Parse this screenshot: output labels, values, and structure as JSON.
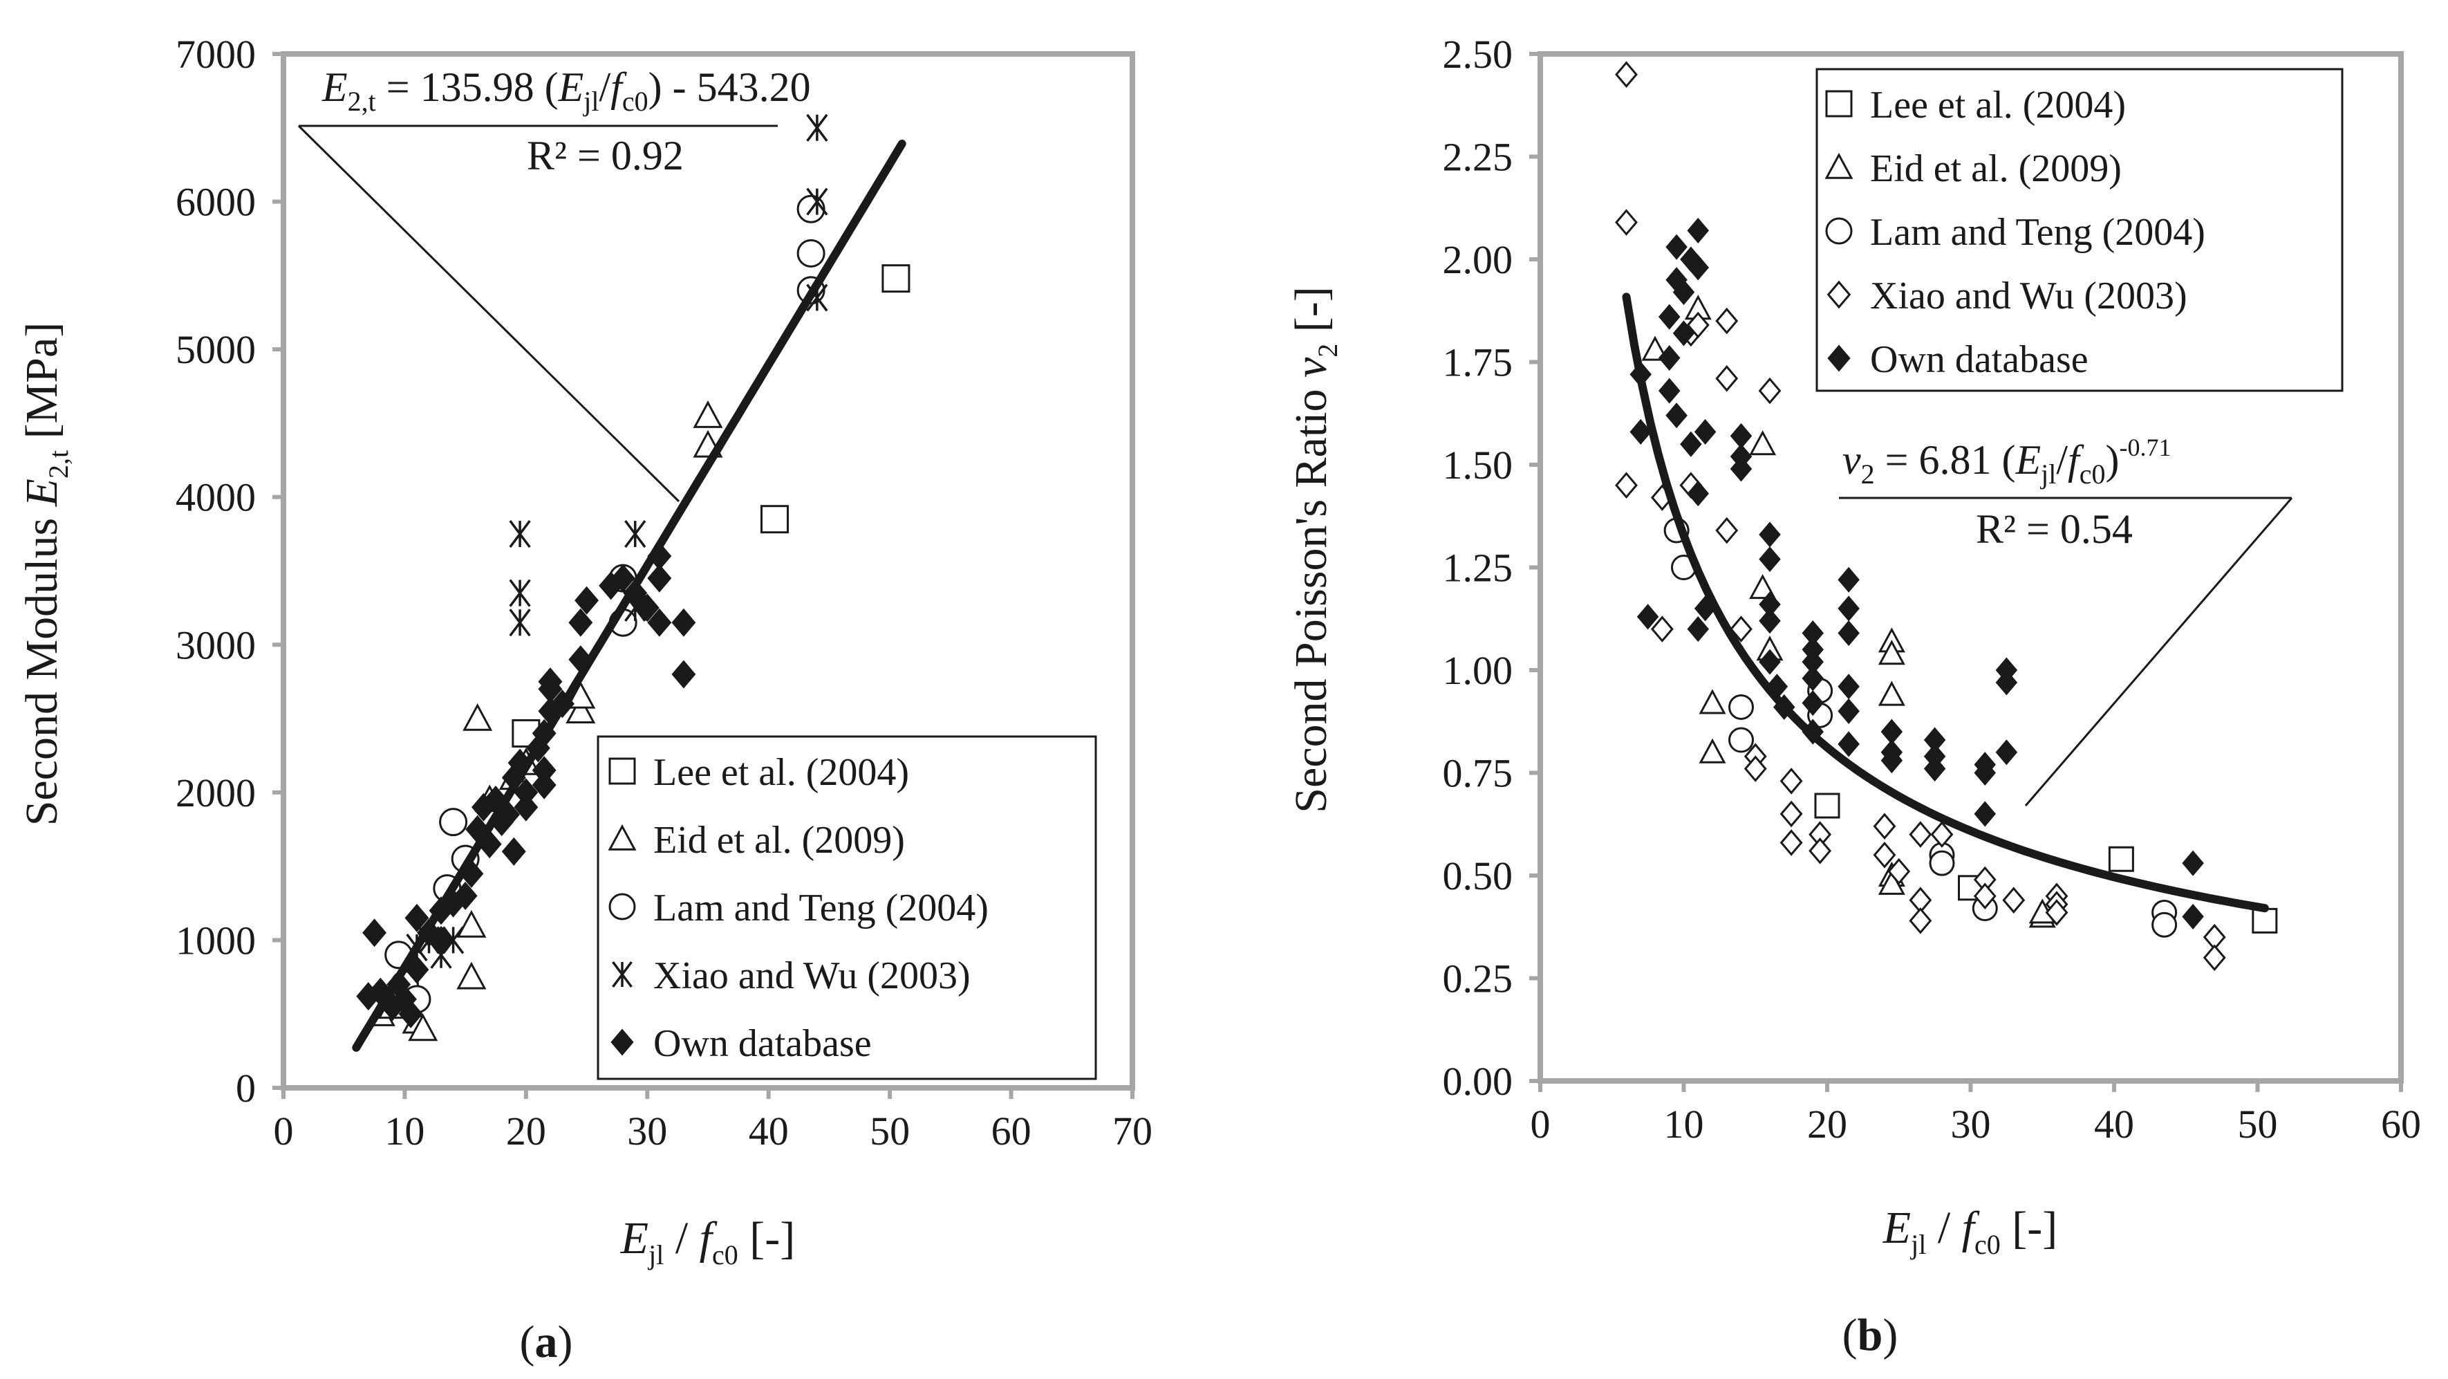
{
  "chart_data": [
    {
      "panel": "a",
      "type": "scatter",
      "caption": "(a)",
      "xlim": [
        0,
        70
      ],
      "ylim": [
        0,
        7000
      ],
      "x_ticks": [
        0,
        10,
        20,
        30,
        40,
        50,
        60,
        70
      ],
      "y_ticks": [
        0,
        1000,
        2000,
        3000,
        4000,
        5000,
        6000,
        7000
      ],
      "xlabel": "E_jl / f_c0 [-]",
      "ylabel": "Second Modulus E_2,t [MPa]",
      "equation": "E_2,t = 135.98 (E_jl/f_c0) - 543.20",
      "r2": "R² = 0.92",
      "fit": {
        "slope": 135.98,
        "intercept": -543.2,
        "x_range": [
          6,
          51
        ]
      },
      "series": [
        {
          "name": "Lee et al. (2004)",
          "marker": "square",
          "points": [
            [
              20,
              2400
            ],
            [
              40.5,
              3850
            ],
            [
              50.5,
              5480
            ]
          ]
        },
        {
          "name": "Eid et al. (2009)",
          "marker": "triangle",
          "points": [
            [
              8,
              500
            ],
            [
              9,
              550
            ],
            [
              11,
              450
            ],
            [
              11.5,
              400
            ],
            [
              15.5,
              750
            ],
            [
              15.5,
              1100
            ],
            [
              16,
              2500
            ],
            [
              17,
              1950
            ],
            [
              19,
              2100
            ],
            [
              20,
              2200
            ],
            [
              24.5,
              2550
            ],
            [
              24.5,
              2650
            ],
            [
              35,
              4350
            ],
            [
              35,
              4550
            ]
          ]
        },
        {
          "name": "Lam and Teng (2004)",
          "marker": "circle",
          "points": [
            [
              9.5,
              900
            ],
            [
              10,
              700
            ],
            [
              11,
              600
            ],
            [
              13.5,
              1350
            ],
            [
              14,
              1800
            ],
            [
              15,
              1550
            ],
            [
              28,
              3150
            ],
            [
              28,
              3450
            ],
            [
              43.5,
              5400
            ],
            [
              43.5,
              5950
            ],
            [
              43.5,
              5650
            ]
          ]
        },
        {
          "name": "Xiao and Wu (2003)",
          "marker": "asterisk",
          "points": [
            [
              11,
              950
            ],
            [
              12,
              1000
            ],
            [
              13,
              900
            ],
            [
              14,
              1000
            ],
            [
              19.5,
              3150
            ],
            [
              19.5,
              3350
            ],
            [
              19.5,
              3750
            ],
            [
              29,
              3250
            ],
            [
              29,
              3750
            ],
            [
              44,
              5350
            ],
            [
              44,
              6000
            ],
            [
              44,
              6500
            ]
          ]
        },
        {
          "name": "Own database",
          "marker": "diamond",
          "points": [
            [
              7,
              620
            ],
            [
              7.5,
              1050
            ],
            [
              8,
              650
            ],
            [
              8.5,
              600
            ],
            [
              9,
              550
            ],
            [
              9.5,
              700
            ],
            [
              10,
              600
            ],
            [
              10.5,
              500
            ],
            [
              11,
              800
            ],
            [
              11,
              1150
            ],
            [
              12,
              1050
            ],
            [
              13,
              1000
            ],
            [
              13,
              1200
            ],
            [
              14,
              1250
            ],
            [
              15,
              1300
            ],
            [
              15.5,
              1450
            ],
            [
              16,
              1750
            ],
            [
              16.5,
              1900
            ],
            [
              17,
              1650
            ],
            [
              17.5,
              1950
            ],
            [
              18,
              1800
            ],
            [
              18.5,
              1850
            ],
            [
              19,
              1600
            ],
            [
              19,
              2100
            ],
            [
              19.5,
              2200
            ],
            [
              20,
              1900
            ],
            [
              20,
              2000
            ],
            [
              21,
              2300
            ],
            [
              21.5,
              2050
            ],
            [
              21.5,
              2150
            ],
            [
              21.5,
              2400
            ],
            [
              22,
              2550
            ],
            [
              22,
              2700
            ],
            [
              22,
              2750
            ],
            [
              23,
              2600
            ],
            [
              24.5,
              2900
            ],
            [
              24.5,
              3150
            ],
            [
              25,
              3300
            ],
            [
              27,
              3400
            ],
            [
              28,
              3450
            ],
            [
              29,
              3350
            ],
            [
              30,
              3250
            ],
            [
              31,
              3450
            ],
            [
              31,
              3600
            ],
            [
              31,
              3150
            ],
            [
              33,
              3150
            ],
            [
              33,
              2800
            ]
          ]
        }
      ],
      "legend": {
        "position": "bottom-right",
        "entries": [
          "Lee et al. (2004)",
          "Eid et al. (2009)",
          "Lam and Teng (2004)",
          "Xiao and Wu (2003)",
          "Own database"
        ]
      }
    },
    {
      "panel": "b",
      "type": "scatter",
      "caption": "(b)",
      "xlim": [
        0,
        60
      ],
      "ylim": [
        0,
        2.5
      ],
      "x_ticks": [
        0,
        10,
        20,
        30,
        40,
        50,
        60
      ],
      "y_ticks": [
        "0.00",
        "0.25",
        "0.50",
        "0.75",
        "1.00",
        "1.25",
        "1.50",
        "1.75",
        "2.00",
        "2.25",
        "2.50"
      ],
      "xlabel": "E_jl / f_c0 [-]",
      "ylabel": "Second Poisson's Ratio ν_2 [-]",
      "equation": "ν_2 = 6.81 (E_jl/f_c0)^-0.71",
      "r2": "R² = 0.54",
      "fit": {
        "coef": 6.81,
        "exponent": -0.71,
        "x_range": [
          6,
          50.5
        ]
      },
      "series": [
        {
          "name": "Lee et al. (2004)",
          "marker": "square",
          "points": [
            [
              20,
              0.67
            ],
            [
              30,
              0.47
            ],
            [
              40.5,
              0.54
            ],
            [
              50.5,
              0.39
            ]
          ]
        },
        {
          "name": "Eid et al. (2009)",
          "marker": "triangle",
          "points": [
            [
              8,
              1.78
            ],
            [
              11,
              1.88
            ],
            [
              12,
              0.8
            ],
            [
              12,
              0.92
            ],
            [
              15.5,
              1.2
            ],
            [
              15.5,
              1.55
            ],
            [
              16,
              1.05
            ],
            [
              24.5,
              1.07
            ],
            [
              24.5,
              1.04
            ],
            [
              24.5,
              0.94
            ],
            [
              24.5,
              0.5
            ],
            [
              24.5,
              0.48
            ],
            [
              35,
              0.4
            ],
            [
              35,
              0.41
            ]
          ]
        },
        {
          "name": "Lam and Teng (2004)",
          "marker": "circle",
          "points": [
            [
              9.5,
              1.34
            ],
            [
              10,
              1.25
            ],
            [
              14,
              0.91
            ],
            [
              14,
              0.83
            ],
            [
              19.5,
              0.89
            ],
            [
              19.5,
              0.95
            ],
            [
              28,
              0.55
            ],
            [
              28,
              0.53
            ],
            [
              31,
              0.42
            ],
            [
              43.5,
              0.41
            ],
            [
              43.5,
              0.38
            ]
          ]
        },
        {
          "name": "Xiao and Wu (2003)",
          "marker": "diamond-open",
          "points": [
            [
              6,
              2.45
            ],
            [
              6,
              2.09
            ],
            [
              6,
              1.45
            ],
            [
              8.5,
              1.42
            ],
            [
              8.5,
              1.1
            ],
            [
              10.5,
              1.45
            ],
            [
              10.5,
              1.82
            ],
            [
              11,
              1.84
            ],
            [
              13,
              1.34
            ],
            [
              13,
              1.71
            ],
            [
              13,
              1.85
            ],
            [
              14,
              1.1
            ],
            [
              15,
              0.79
            ],
            [
              15,
              0.76
            ],
            [
              16,
              1.68
            ],
            [
              17.5,
              0.73
            ],
            [
              17.5,
              0.65
            ],
            [
              17.5,
              0.58
            ],
            [
              19.5,
              0.6
            ],
            [
              19.5,
              0.56
            ],
            [
              24,
              0.62
            ],
            [
              24,
              0.55
            ],
            [
              25,
              0.51
            ],
            [
              26.5,
              0.6
            ],
            [
              26.5,
              0.44
            ],
            [
              26.5,
              0.39
            ],
            [
              28,
              0.6
            ],
            [
              31,
              0.49
            ],
            [
              31,
              0.45
            ],
            [
              33,
              0.44
            ],
            [
              36,
              0.45
            ],
            [
              36,
              0.43
            ],
            [
              36,
              0.41
            ],
            [
              47,
              0.35
            ],
            [
              47,
              0.3
            ]
          ]
        },
        {
          "name": "Own database",
          "marker": "diamond",
          "points": [
            [
              7,
              1.72
            ],
            [
              7,
              1.58
            ],
            [
              7.5,
              1.13
            ],
            [
              9,
              1.86
            ],
            [
              9,
              1.76
            ],
            [
              9,
              1.68
            ],
            [
              9.5,
              1.95
            ],
            [
              9.5,
              2.03
            ],
            [
              9.5,
              1.62
            ],
            [
              10,
              1.92
            ],
            [
              10,
              1.82
            ],
            [
              10.5,
              2.0
            ],
            [
              10.5,
              1.55
            ],
            [
              11,
              2.07
            ],
            [
              11,
              1.98
            ],
            [
              11,
              1.43
            ],
            [
              11,
              1.1
            ],
            [
              11.5,
              1.58
            ],
            [
              11.5,
              1.15
            ],
            [
              14,
              1.57
            ],
            [
              14,
              1.52
            ],
            [
              14,
              1.49
            ],
            [
              16,
              1.33
            ],
            [
              16,
              1.27
            ],
            [
              16,
              1.16
            ],
            [
              16,
              1.12
            ],
            [
              16,
              1.02
            ],
            [
              16.5,
              0.96
            ],
            [
              17,
              0.91
            ],
            [
              19,
              1.09
            ],
            [
              19,
              1.05
            ],
            [
              19,
              1.02
            ],
            [
              19,
              0.98
            ],
            [
              19,
              0.92
            ],
            [
              19,
              0.85
            ],
            [
              21.5,
              1.22
            ],
            [
              21.5,
              1.15
            ],
            [
              21.5,
              1.09
            ],
            [
              21.5,
              0.96
            ],
            [
              21.5,
              0.9
            ],
            [
              21.5,
              0.82
            ],
            [
              24.5,
              0.85
            ],
            [
              24.5,
              0.8
            ],
            [
              24.5,
              0.78
            ],
            [
              27.5,
              0.83
            ],
            [
              27.5,
              0.79
            ],
            [
              27.5,
              0.76
            ],
            [
              31,
              0.77
            ],
            [
              31,
              0.75
            ],
            [
              31,
              0.65
            ],
            [
              32.5,
              1.0
            ],
            [
              32.5,
              0.97
            ],
            [
              32.5,
              0.8
            ],
            [
              45.5,
              0.53
            ],
            [
              45.5,
              0.4
            ]
          ]
        }
      ],
      "legend": {
        "position": "top-right",
        "entries": [
          "Lee et al. (2004)",
          "Eid et al. (2009)",
          "Lam and Teng (2004)",
          "Xiao and Wu (2003)",
          "Own database"
        ]
      }
    }
  ],
  "text": {
    "a_eq_lhs": "E",
    "a_eq_lhs_sub": "2,t",
    "a_eq_mid": " = 135.98 (",
    "a_eq_e": "E",
    "a_eq_e_sub": "jl",
    "a_eq_slash": "/",
    "a_eq_f": "f",
    "a_eq_f_sub": "c0",
    "a_eq_tail": ") - 543.20",
    "a_r2": "R² = 0.92",
    "a_ylabel_main": "Second Modulus  ",
    "a_ylabel_e": "E",
    "a_ylabel_sub": "2,t",
    "a_ylabel_unit": " [MPa]",
    "a_xlabel_e": "E",
    "a_xlabel_esub": "jl",
    "a_xlabel_mid": " / ",
    "a_xlabel_f": "f",
    "a_xlabel_fsub": "c0",
    "a_xlabel_unit": " [-]",
    "a_caption_open": "(",
    "a_caption_letter": "a",
    "a_caption_close": ")",
    "b_eq_nu": "ν",
    "b_eq_nu_sub": "2",
    "b_eq_mid": " = 6.81 (",
    "b_eq_e": "E",
    "b_eq_e_sub": "jl",
    "b_eq_slash": "/",
    "b_eq_f": "f",
    "b_eq_f_sub": "c0",
    "b_eq_close": ")",
    "b_eq_exp": "-0.71",
    "b_r2": "R² = 0.54",
    "b_ylabel_main": "Second Poisson's Ratio ",
    "b_ylabel_nu": "ν",
    "b_ylabel_sub": "2",
    "b_ylabel_unit": " [-]",
    "b_xlabel_e": "E",
    "b_xlabel_esub": "jl",
    "b_xlabel_mid": " / ",
    "b_xlabel_f": "f",
    "b_xlabel_fsub": "c0",
    "b_xlabel_unit": "  [-]",
    "b_caption_open": "(",
    "b_caption_letter": "b",
    "b_caption_close": ")"
  }
}
